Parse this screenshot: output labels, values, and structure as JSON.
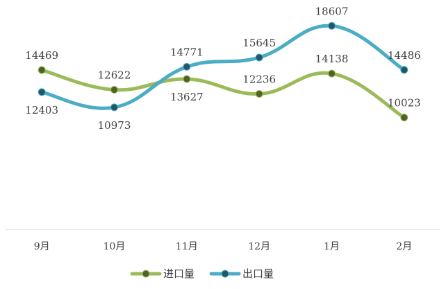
{
  "chart_data": {
    "type": "line",
    "title": "",
    "xlabel": "",
    "ylabel": "",
    "categories": [
      "9月",
      "10月",
      "11月",
      "12月",
      "1月",
      "2月"
    ],
    "ylim": [
      0,
      20000
    ],
    "grid": false,
    "smooth": true,
    "legend_position": "bottom",
    "series": [
      {
        "name": "进口量",
        "values": [
          14469,
          12622,
          13627,
          12236,
          14138,
          10023
        ],
        "line_color": "#9bbb59",
        "marker_color": "#4f6228",
        "label_placement": [
          "above",
          "above",
          "below",
          "above",
          "above",
          "above"
        ]
      },
      {
        "name": "出口量",
        "values": [
          12403,
          10973,
          14771,
          15645,
          18607,
          14486
        ],
        "line_color": "#4bacc6",
        "marker_color": "#215868",
        "label_placement": [
          "below",
          "below",
          "above",
          "above",
          "above",
          "above"
        ]
      }
    ]
  }
}
